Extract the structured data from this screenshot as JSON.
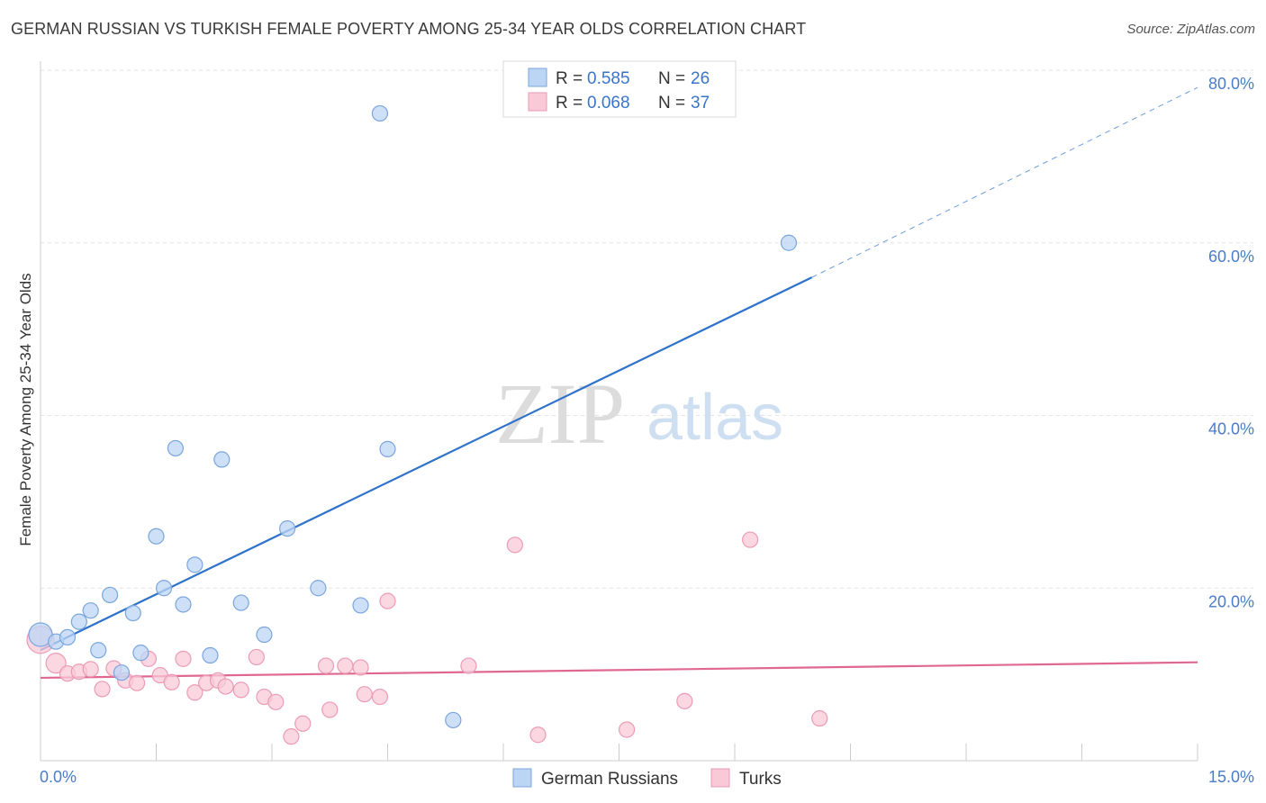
{
  "title": "GERMAN RUSSIAN VS TURKISH FEMALE POVERTY AMONG 25-34 YEAR OLDS CORRELATION CHART",
  "source": "Source: ZipAtlas.com",
  "watermark": {
    "zip": "ZIP",
    "atlas": "atlas"
  },
  "colors": {
    "blue_fill": "#bcd5f5",
    "blue_stroke": "#7aa6dc",
    "blue_line": "#2f72cc",
    "pink_fill": "#f9c9d8",
    "pink_stroke": "#eb9bb5",
    "pink_line": "#e0688f",
    "grid": "#e3e3e3",
    "tick_text": "#4a7cc9"
  },
  "legend_top": {
    "rows": [
      {
        "series": "German Russians",
        "r_label": "R =",
        "r_value": "0.585",
        "n_label": "N =",
        "n_value": "26"
      },
      {
        "series": "Turks",
        "r_label": "R =",
        "r_value": "0.068",
        "n_label": "N =",
        "n_value": "37"
      }
    ]
  },
  "legend_bottom": [
    "German Russians",
    "Turks"
  ],
  "chart_data": {
    "type": "scatter",
    "xlabel": "",
    "ylabel": "Female Poverty Among 25-34 Year Olds",
    "xlim": [
      0,
      15
    ],
    "ylim": [
      0,
      80
    ],
    "x_tick_labels": [
      {
        "value": 0,
        "label": "0.0%"
      },
      {
        "value": 15,
        "label": "15.0%"
      }
    ],
    "y_tick_labels": [
      {
        "value": 20,
        "label": "20.0%"
      },
      {
        "value": 40,
        "label": "40.0%"
      },
      {
        "value": 60,
        "label": "60.0%"
      },
      {
        "value": 80,
        "label": "80.0%"
      }
    ],
    "series": [
      {
        "name": "German Russians",
        "points": [
          {
            "x": 0.0,
            "y": 14.6,
            "size": 18
          },
          {
            "x": 0.2,
            "y": 13.8
          },
          {
            "x": 0.35,
            "y": 14.3
          },
          {
            "x": 0.5,
            "y": 16.1
          },
          {
            "x": 0.65,
            "y": 17.4
          },
          {
            "x": 0.75,
            "y": 12.8
          },
          {
            "x": 0.9,
            "y": 19.2
          },
          {
            "x": 1.05,
            "y": 10.2
          },
          {
            "x": 1.2,
            "y": 17.1
          },
          {
            "x": 1.3,
            "y": 12.5
          },
          {
            "x": 1.5,
            "y": 26.0
          },
          {
            "x": 1.6,
            "y": 20.0
          },
          {
            "x": 1.75,
            "y": 36.2
          },
          {
            "x": 1.85,
            "y": 18.1
          },
          {
            "x": 2.0,
            "y": 22.7
          },
          {
            "x": 2.2,
            "y": 12.2
          },
          {
            "x": 2.35,
            "y": 34.9
          },
          {
            "x": 2.6,
            "y": 18.3
          },
          {
            "x": 2.9,
            "y": 14.6
          },
          {
            "x": 3.2,
            "y": 26.9
          },
          {
            "x": 3.6,
            "y": 20.0
          },
          {
            "x": 4.15,
            "y": 18.0
          },
          {
            "x": 4.4,
            "y": 75.0
          },
          {
            "x": 4.5,
            "y": 36.1
          },
          {
            "x": 5.35,
            "y": 4.7
          },
          {
            "x": 9.7,
            "y": 60.0
          }
        ],
        "trend": {
          "x_start": 0.0,
          "y_start": 12.8,
          "x_solid_end": 10.0,
          "y_solid_end": 56.0,
          "x_dash_end": 15.0,
          "y_dash_end": 78.0
        }
      },
      {
        "name": "Turks",
        "points": [
          {
            "x": 0.0,
            "y": 14.0,
            "size": 22
          },
          {
            "x": 0.2,
            "y": 11.3,
            "size": 14
          },
          {
            "x": 0.35,
            "y": 10.1
          },
          {
            "x": 0.5,
            "y": 10.3
          },
          {
            "x": 0.65,
            "y": 10.6
          },
          {
            "x": 0.8,
            "y": 8.3
          },
          {
            "x": 0.95,
            "y": 10.7
          },
          {
            "x": 1.1,
            "y": 9.3
          },
          {
            "x": 1.25,
            "y": 9.0
          },
          {
            "x": 1.4,
            "y": 11.8
          },
          {
            "x": 1.55,
            "y": 9.9
          },
          {
            "x": 1.7,
            "y": 9.1
          },
          {
            "x": 1.85,
            "y": 11.8
          },
          {
            "x": 2.0,
            "y": 7.9
          },
          {
            "x": 2.15,
            "y": 9.0
          },
          {
            "x": 2.3,
            "y": 9.3
          },
          {
            "x": 2.4,
            "y": 8.6
          },
          {
            "x": 2.6,
            "y": 8.2
          },
          {
            "x": 2.8,
            "y": 12.0
          },
          {
            "x": 2.9,
            "y": 7.4
          },
          {
            "x": 3.05,
            "y": 6.8
          },
          {
            "x": 3.25,
            "y": 2.8
          },
          {
            "x": 3.4,
            "y": 4.3
          },
          {
            "x": 3.7,
            "y": 11.0
          },
          {
            "x": 3.75,
            "y": 5.9
          },
          {
            "x": 3.95,
            "y": 11.0
          },
          {
            "x": 4.15,
            "y": 10.8
          },
          {
            "x": 4.2,
            "y": 7.7
          },
          {
            "x": 4.4,
            "y": 7.4
          },
          {
            "x": 4.5,
            "y": 18.5
          },
          {
            "x": 5.55,
            "y": 11.0
          },
          {
            "x": 6.15,
            "y": 25.0
          },
          {
            "x": 6.45,
            "y": 3.0
          },
          {
            "x": 7.6,
            "y": 3.6
          },
          {
            "x": 8.35,
            "y": 6.9
          },
          {
            "x": 9.2,
            "y": 25.6
          },
          {
            "x": 10.1,
            "y": 4.9
          }
        ],
        "trend": {
          "x_start": 0.0,
          "y_start": 9.6,
          "x_end": 15.0,
          "y_end": 11.4
        }
      }
    ]
  }
}
